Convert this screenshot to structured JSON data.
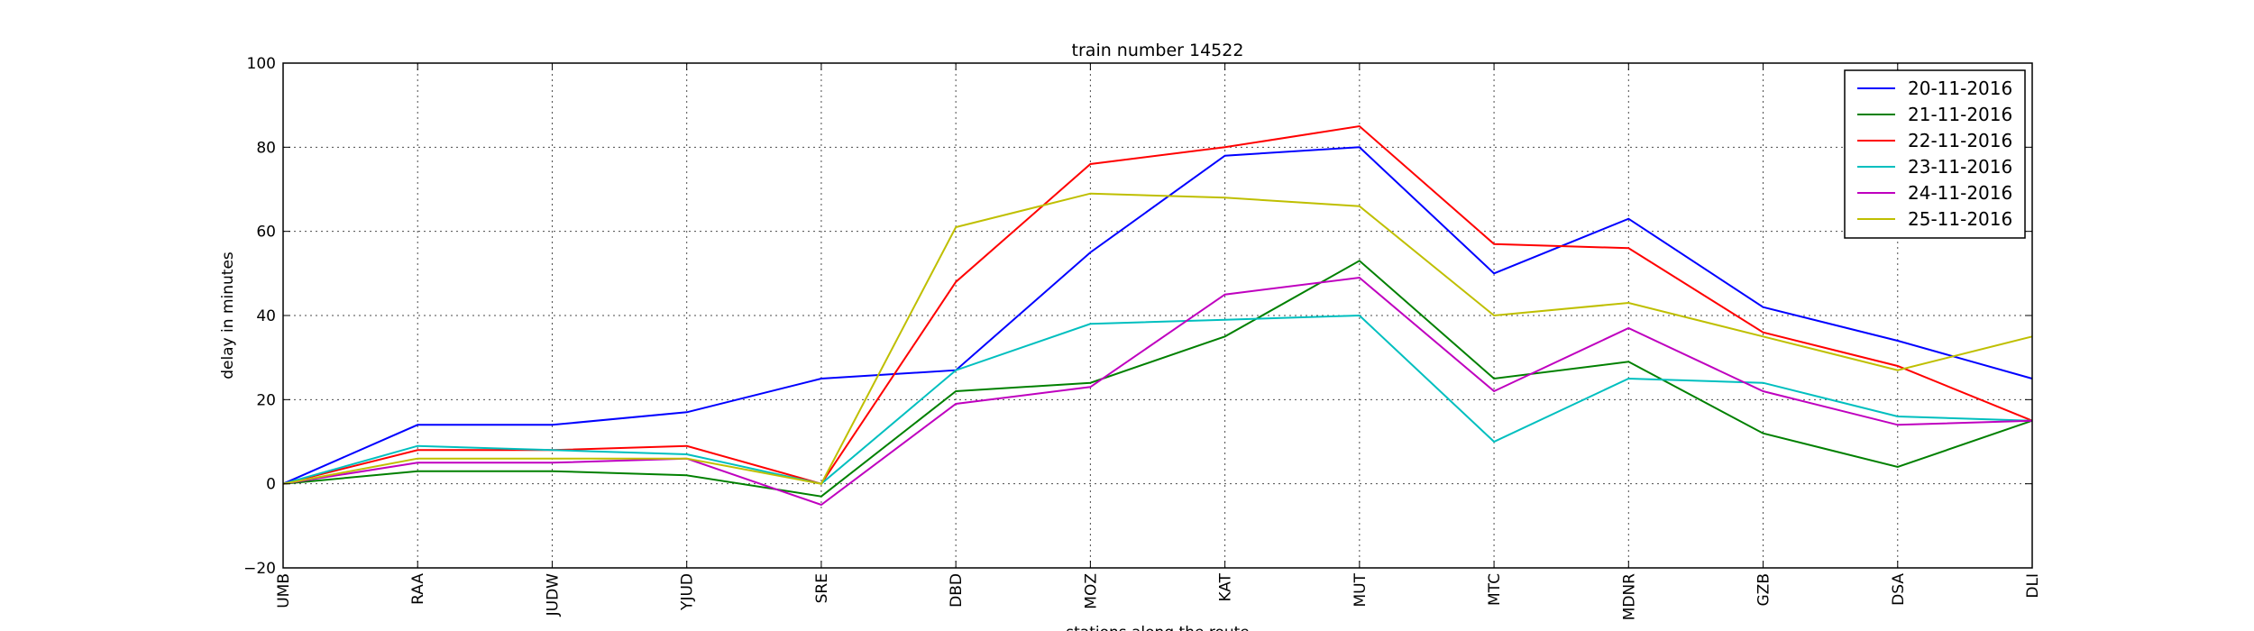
{
  "chart_data": {
    "type": "line",
    "title": "train number 14522",
    "xlabel": "stations along the route",
    "ylabel": "delay in minutes",
    "categories": [
      "UMB",
      "RAA",
      "JUDW",
      "YJUD",
      "SRE",
      "DBD",
      "MOZ",
      "KAT",
      "MUT",
      "MTC",
      "MDNR",
      "GZB",
      "DSA",
      "DLI"
    ],
    "ylim": [
      -20,
      100
    ],
    "yticks": [
      -20,
      0,
      20,
      40,
      60,
      80,
      100
    ],
    "grid": true,
    "legend_position": "top-right",
    "series": [
      {
        "name": "20-11-2016",
        "color": "#0000ff",
        "values": [
          0,
          14,
          14,
          17,
          25,
          27,
          55,
          78,
          80,
          50,
          63,
          42,
          34,
          25
        ]
      },
      {
        "name": "21-11-2016",
        "color": "#008000",
        "values": [
          0,
          3,
          3,
          2,
          -3,
          22,
          24,
          35,
          53,
          25,
          29,
          12,
          4,
          15
        ]
      },
      {
        "name": "22-11-2016",
        "color": "#ff0000",
        "values": [
          0,
          8,
          8,
          9,
          0,
          48,
          76,
          80,
          85,
          57,
          56,
          36,
          28,
          15
        ]
      },
      {
        "name": "23-11-2016",
        "color": "#00bfbf",
        "values": [
          0,
          9,
          8,
          7,
          0,
          27,
          38,
          39,
          40,
          10,
          25,
          24,
          16,
          15
        ]
      },
      {
        "name": "24-11-2016",
        "color": "#bf00bf",
        "values": [
          0,
          5,
          5,
          6,
          -5,
          19,
          23,
          45,
          49,
          22,
          37,
          22,
          14,
          15
        ]
      },
      {
        "name": "25-11-2016",
        "color": "#bfbf00",
        "values": [
          0,
          6,
          6,
          6,
          0,
          61,
          69,
          68,
          66,
          40,
          43,
          35,
          27,
          35
        ]
      }
    ]
  }
}
